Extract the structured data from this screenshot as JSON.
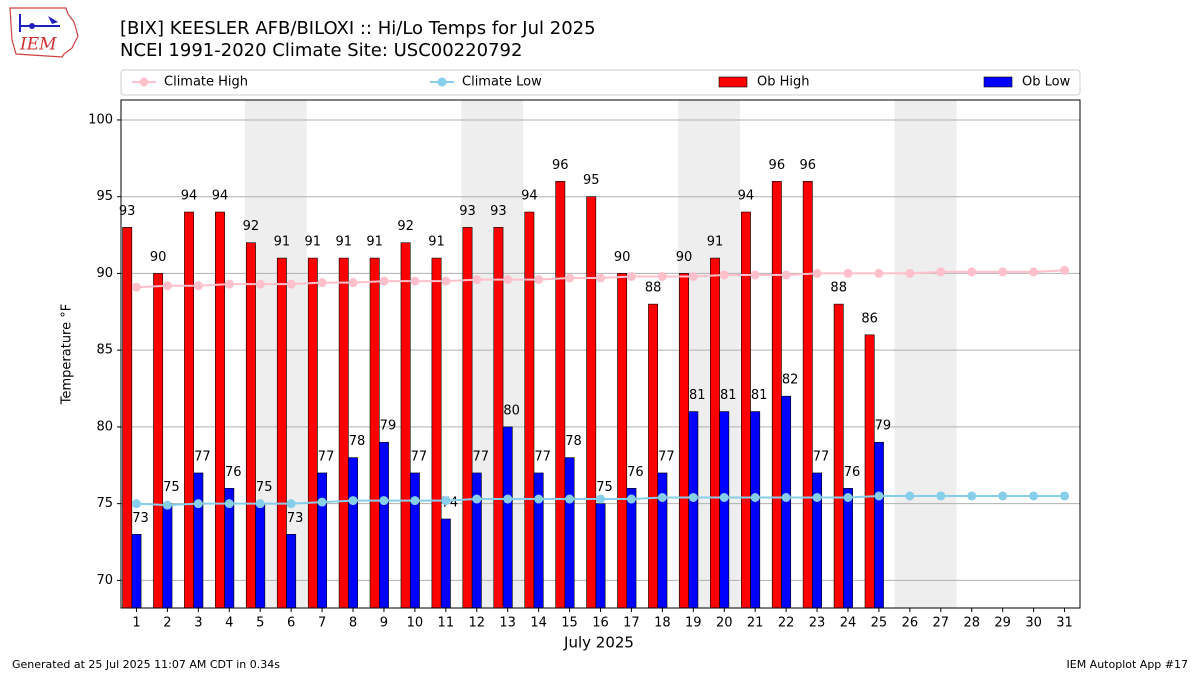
{
  "logo_text": "IEM",
  "footer_left": "Generated at 25 Jul 2025 11:07 AM CDT in 0.34s",
  "footer_right": "IEM Autoplot App #17",
  "chart_data": {
    "type": "bar",
    "title": "[BIX] KEESLER AFB/BILOXI :: Hi/Lo Temps for Jul 2025",
    "subtitle": "NCEI 1991-2020 Climate Site: USC00220792",
    "x_label": "July 2025",
    "y_label": "Temperature °F",
    "x": [
      1,
      2,
      3,
      4,
      5,
      6,
      7,
      8,
      9,
      10,
      11,
      12,
      13,
      14,
      15,
      16,
      17,
      18,
      19,
      20,
      21,
      22,
      23,
      24,
      25,
      26,
      27,
      28,
      29,
      30,
      31
    ],
    "xlim": [
      0.5,
      31.5
    ],
    "xticks": [
      1,
      2,
      3,
      4,
      5,
      6,
      7,
      8,
      9,
      10,
      11,
      12,
      13,
      14,
      15,
      16,
      17,
      18,
      19,
      20,
      21,
      22,
      23,
      24,
      25,
      26,
      27,
      28,
      29,
      30,
      31
    ],
    "ylim": [
      68.2,
      101.3
    ],
    "yticks": [
      70,
      75,
      80,
      85,
      90,
      95,
      100
    ],
    "grid": true,
    "legend": "top",
    "series": [
      {
        "name": "Climate High",
        "type": "line",
        "color": "#ffc0cb",
        "values": [
          89.1,
          89.2,
          89.2,
          89.3,
          89.3,
          89.3,
          89.4,
          89.4,
          89.5,
          89.5,
          89.5,
          89.6,
          89.6,
          89.6,
          89.7,
          89.7,
          89.8,
          89.8,
          89.8,
          89.9,
          89.9,
          89.9,
          90.0,
          90.0,
          90.0,
          90.0,
          90.1,
          90.1,
          90.1,
          90.1,
          90.2
        ]
      },
      {
        "name": "Climate Low",
        "type": "line",
        "color": "#87ceeb",
        "values": [
          75.0,
          74.9,
          75.0,
          75.0,
          75.0,
          75.0,
          75.1,
          75.2,
          75.2,
          75.2,
          75.2,
          75.3,
          75.3,
          75.3,
          75.3,
          75.3,
          75.3,
          75.4,
          75.4,
          75.4,
          75.4,
          75.4,
          75.4,
          75.4,
          75.5,
          75.5,
          75.5,
          75.5,
          75.5,
          75.5,
          75.5
        ]
      },
      {
        "name": "Ob High",
        "type": "bar",
        "color": "#ff0000",
        "values": [
          93,
          90,
          94,
          94,
          92,
          91,
          91,
          91,
          91,
          92,
          91,
          93,
          93,
          94,
          96,
          95,
          90,
          88,
          90,
          91,
          94,
          96,
          96,
          88,
          86,
          null,
          null,
          null,
          null,
          null,
          null
        ]
      },
      {
        "name": "Ob Low",
        "type": "bar",
        "color": "#0000ff",
        "values": [
          73,
          75,
          77,
          76,
          75,
          73,
          77,
          78,
          79,
          77,
          74,
          77,
          80,
          77,
          78,
          75,
          76,
          77,
          81,
          81,
          81,
          82,
          77,
          76,
          79,
          null,
          null,
          null,
          null,
          null,
          null
        ]
      }
    ]
  }
}
